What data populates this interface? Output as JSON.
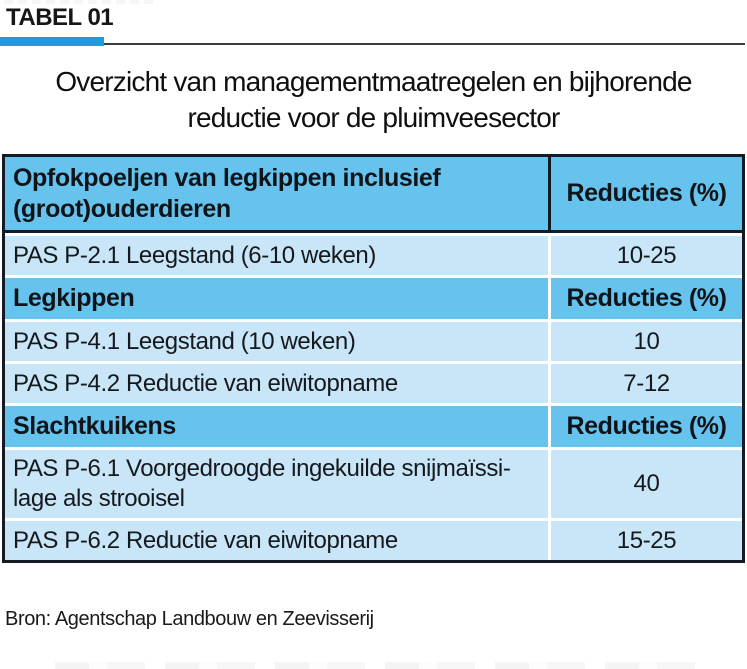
{
  "page": {
    "kicker": "TABEL 01",
    "title_line1": "Overzicht van managementmaatregelen en bijhorende",
    "title_line2": "reductie voor de pluimveesector",
    "source": "Bron: Agentschap Landbouw en Zeevisserij"
  },
  "colors": {
    "accent_blue": "#1e9cd8",
    "header_blue": "#66c3ee",
    "row_blue": "#c8e6f7",
    "table_border": "#141b24"
  },
  "table": {
    "value_column_header": "Reducties (%)",
    "sections": [
      {
        "header": {
          "col1": "Opfokpoeljen van legkippen inclusief (groot)ouderdieren",
          "col2": "Reducties (%)"
        },
        "rows": [
          {
            "col1": "PAS P-2.1 Leegstand (6-10 weken)",
            "col2": "10-25"
          }
        ]
      },
      {
        "header": {
          "col1": "Legkippen",
          "col2": "Reducties (%)"
        },
        "rows": [
          {
            "col1": "PAS P-4.1 Leegstand (10 weken)",
            "col2": "10"
          },
          {
            "col1": "PAS P-4.2 Reductie van eiwitopname",
            "col2": "7-12"
          }
        ]
      },
      {
        "header": {
          "col1": "Slachtkuikens",
          "col2": "Reducties (%)"
        },
        "rows": [
          {
            "col1": "PAS P-6.1 Voorgedroogde ingekuilde snijmaïssi-lage als strooisel",
            "col2": "40"
          },
          {
            "col1": "PAS P-6.2 Reductie van eiwitopname",
            "col2": "15-25"
          }
        ]
      }
    ]
  }
}
